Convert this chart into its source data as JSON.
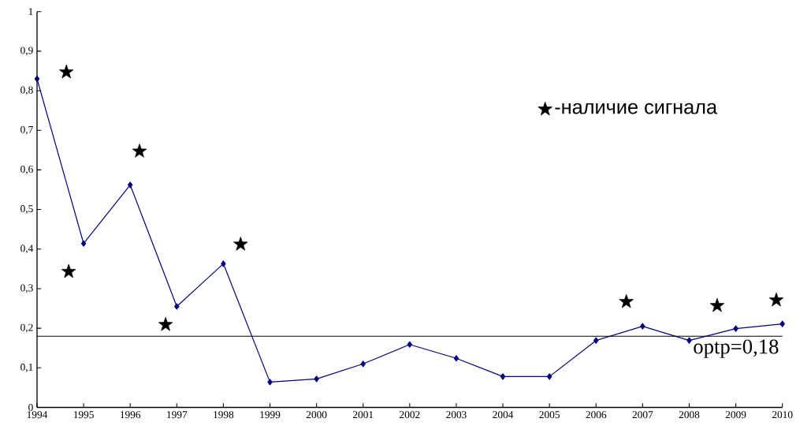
{
  "chart_data": {
    "type": "line",
    "x": [
      1994,
      1995,
      1996,
      1997,
      1998,
      1999,
      2000,
      2001,
      2002,
      2003,
      2004,
      2005,
      2006,
      2007,
      2008,
      2009,
      2010
    ],
    "series": [
      {
        "type": "line",
        "color": "#000080",
        "marker": "diamond",
        "values": [
          0.83,
          0.414,
          0.562,
          0.255,
          0.363,
          0.064,
          0.072,
          0.11,
          0.159,
          0.124,
          0.078,
          0.078,
          0.169,
          0.205,
          0.169,
          0.199,
          0.211
        ]
      },
      {
        "type": "scatter",
        "name": "-наличие сигнала",
        "color": "#000000",
        "marker": "star",
        "x": [
          1994.63,
          1994.68,
          1996.2,
          1996.76,
          1998.37,
          2006.65,
          2008.6,
          2009.87
        ],
        "values": [
          0.847,
          0.343,
          0.647,
          0.209,
          0.412,
          0.267,
          0.257,
          0.271
        ]
      }
    ],
    "xlim": [
      1994,
      2010
    ],
    "xticks": [
      1994,
      1995,
      1996,
      1997,
      1998,
      1999,
      2000,
      2001,
      2002,
      2003,
      2004,
      2005,
      2006,
      2007,
      2008,
      2009,
      2010
    ],
    "ylim": [
      0,
      1
    ],
    "yticks": [
      0,
      {
        "value": 0.1,
        "label": "0,1"
      },
      {
        "value": 0.2,
        "label": "0,2"
      },
      {
        "value": 0.3,
        "label": "0,3"
      },
      {
        "value": 0.4,
        "label": "0,4"
      },
      {
        "value": 0.5,
        "label": "0,5"
      },
      {
        "value": 0.6,
        "label": "0,6"
      },
      {
        "value": 0.7,
        "label": "0,7"
      },
      {
        "value": 0.8,
        "label": "0,8"
      },
      {
        "value": 0.9,
        "label": "0,9"
      },
      1
    ],
    "ref_lines": [
      {
        "axis": "y",
        "value": 0.18,
        "label": "optp=0,18",
        "color": "#000000"
      }
    ],
    "grid": false,
    "legend": "top right"
  }
}
